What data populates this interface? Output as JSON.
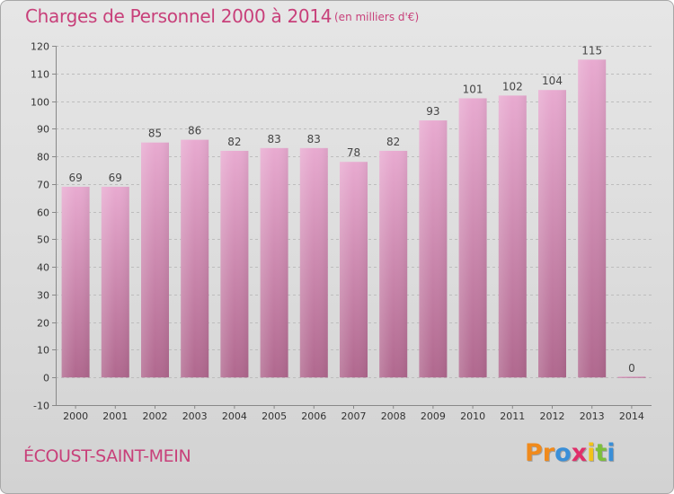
{
  "header": {
    "title": "Charges de Personnel 2000 à 2014",
    "subtitle": "(en milliers d'€)"
  },
  "footer": {
    "commune": "ÉCOUST-SAINT-MEIN",
    "logo_letters": [
      "P",
      "r",
      "o",
      "x",
      "i",
      "t",
      "i"
    ]
  },
  "colors": {
    "title": "#c8407a",
    "bar_top": "#e8aad0",
    "bar_bottom": "#b0688e",
    "logo": [
      "#f08a1c",
      "#f08a1c",
      "#3a8fd8",
      "#e02f6a",
      "#f2c21a",
      "#7cbf3a",
      "#3a8fd8"
    ]
  },
  "chart_data": {
    "type": "bar",
    "categories": [
      "2000",
      "2001",
      "2002",
      "2003",
      "2004",
      "2005",
      "2006",
      "2007",
      "2008",
      "2009",
      "2010",
      "2011",
      "2012",
      "2013",
      "2014"
    ],
    "values": [
      69,
      69,
      85,
      86,
      82,
      83,
      83,
      78,
      82,
      93,
      101,
      102,
      104,
      115,
      0
    ],
    "yticks": [
      -10,
      0,
      10,
      20,
      30,
      40,
      50,
      60,
      70,
      80,
      90,
      100,
      110,
      120
    ],
    "ylim": [
      -10,
      120
    ],
    "grid": true,
    "title": "Charges de Personnel 2000 à 2014",
    "xlabel": "",
    "ylabel": ""
  }
}
